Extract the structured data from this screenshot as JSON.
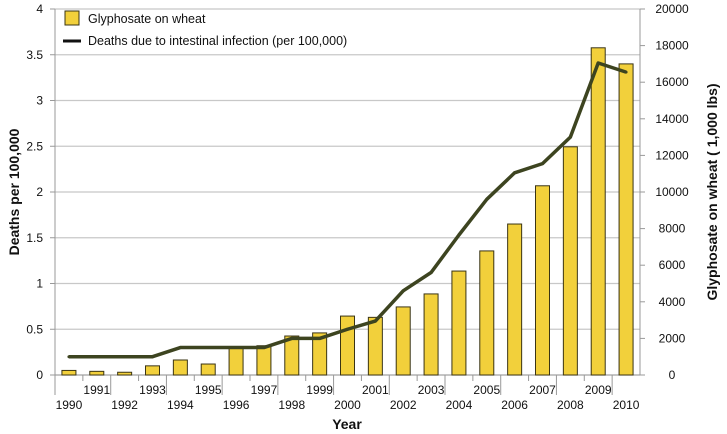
{
  "chart_data": {
    "type": "bar",
    "categories": [
      "1990",
      "1991",
      "1992",
      "1993",
      "1994",
      "1995",
      "1996",
      "1997",
      "1998",
      "1999",
      "2000",
      "2001",
      "2002",
      "2003",
      "2004",
      "2005",
      "2006",
      "2007",
      "2008",
      "2009",
      "2010"
    ],
    "series": [
      {
        "name": "Glyphosate on wheat",
        "type": "bar",
        "axis": "right",
        "color": "#f2d03b",
        "values": [
          250,
          200,
          150,
          500,
          820,
          600,
          1530,
          1600,
          2130,
          2300,
          3220,
          3150,
          3720,
          4430,
          5680,
          6780,
          8250,
          10340,
          12470,
          17880,
          17000
        ]
      },
      {
        "name": "Deaths due to intestinal infection (per 100,000)",
        "type": "line",
        "axis": "left",
        "color": "#3d4420",
        "values": [
          0.2,
          0.2,
          0.2,
          0.2,
          0.3,
          0.3,
          0.3,
          0.3,
          0.4,
          0.4,
          0.5,
          0.59,
          0.92,
          1.12,
          1.53,
          1.92,
          2.21,
          2.31,
          2.6,
          3.41,
          3.31
        ]
      }
    ],
    "xlabel": "Year",
    "ylabel": "Deaths per 100,000",
    "y2label": "Glyphosate on wheat ( 1,000 lbs)",
    "ylim": [
      0,
      4
    ],
    "y2lim": [
      0,
      20000
    ],
    "yticks": [
      "0",
      "0.5",
      "1",
      "1.5",
      "2",
      "2.5",
      "3",
      "3.5",
      "4"
    ],
    "y2ticks": [
      "0",
      "2000",
      "4000",
      "6000",
      "8000",
      "10000",
      "12000",
      "14000",
      "16000",
      "18000",
      "20000"
    ],
    "grid": true,
    "legend": "top-left"
  }
}
